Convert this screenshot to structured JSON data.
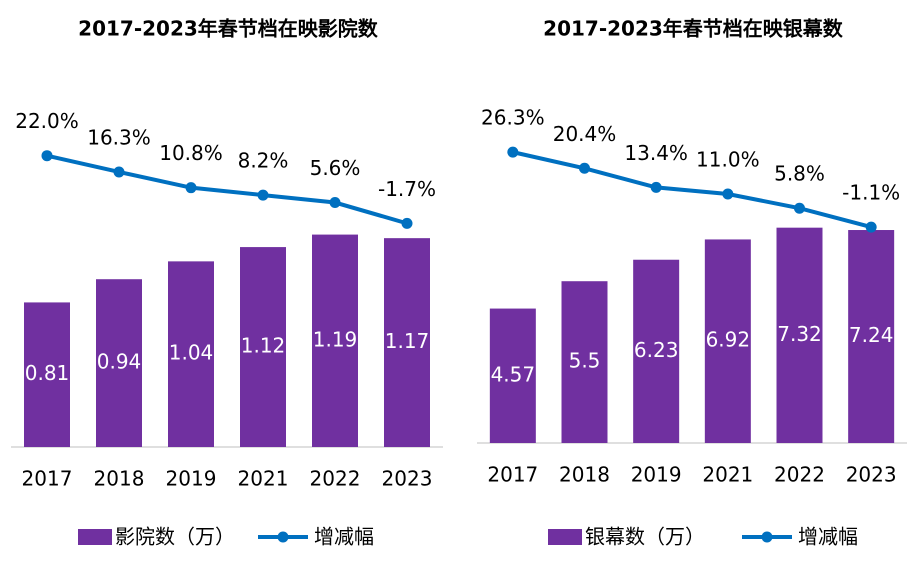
{
  "chart_data": [
    {
      "type": "bar-line",
      "title": "2017-2023年春节档在映影院数",
      "categories": [
        "2017",
        "2018",
        "2019",
        "2021",
        "2022",
        "2023"
      ],
      "series": [
        {
          "name": "影院数（万）",
          "type": "bar",
          "color": "#7030a0",
          "values": [
            0.81,
            0.94,
            1.04,
            1.12,
            1.19,
            1.17
          ]
        },
        {
          "name": "增减幅",
          "type": "line",
          "axis": "y2",
          "color": "#0070c0",
          "values": [
            22.0,
            16.3,
            10.8,
            8.2,
            5.6,
            -1.7
          ],
          "value_labels": [
            "22.0%",
            "16.3%",
            "10.8%",
            "8.2%",
            "5.6%",
            "-1.7%"
          ]
        }
      ],
      "ylim": [
        0,
        2
      ],
      "y2lim": [
        -80,
        45
      ]
    },
    {
      "type": "bar-line",
      "title": "2017-2023年春节档在映银幕数",
      "categories": [
        "2017",
        "2018",
        "2019",
        "2021",
        "2022",
        "2023"
      ],
      "series": [
        {
          "name": "银幕数（万）",
          "type": "bar",
          "color": "#7030a0",
          "values": [
            4.57,
            5.5,
            6.23,
            6.92,
            7.32,
            7.24
          ]
        },
        {
          "name": "增减幅",
          "type": "line",
          "axis": "y2",
          "color": "#0070c0",
          "values": [
            26.3,
            20.4,
            13.4,
            11.0,
            5.8,
            -1.1
          ],
          "value_labels": [
            "26.3%",
            "20.4%",
            "13.4%",
            "11.0%",
            "5.8%",
            "-1.1%"
          ]
        }
      ],
      "ylim": [
        0,
        12
      ],
      "y2lim": [
        -80,
        49
      ]
    }
  ]
}
